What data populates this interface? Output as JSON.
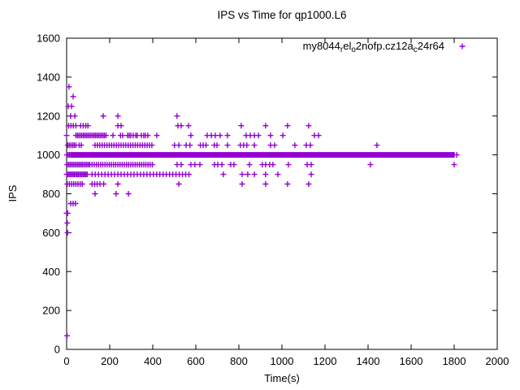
{
  "title": "IPS vs Time for qp1000.L6",
  "legend": {
    "parts": [
      {
        "text": "my8044"
      },
      {
        "text": "r",
        "sub": true
      },
      {
        "text": "el"
      },
      {
        "text": "o",
        "sub": true
      },
      {
        "text": "2nofp.cz12a"
      },
      {
        "text": "c",
        "sub": true
      },
      {
        "text": "24r64"
      }
    ],
    "marker": "plus-icon",
    "position": "top-right-inside"
  },
  "colors": {
    "series": "#9400D3",
    "axis": "#000000",
    "background": "#ffffff"
  },
  "chart_data": {
    "type": "scatter",
    "marker": "plus",
    "title": "IPS vs Time for qp1000.L6",
    "xlabel": "Time(s)",
    "ylabel": "IPS",
    "xlim": [
      0,
      2000
    ],
    "ylim": [
      0,
      1600
    ],
    "x_ticks": [
      0,
      200,
      400,
      600,
      800,
      1000,
      1200,
      1400,
      1600,
      1800,
      2000
    ],
    "y_ticks": [
      0,
      200,
      400,
      600,
      800,
      1000,
      1200,
      1400,
      1600
    ],
    "grid": false,
    "series_label_plain": "my8044_rel_o2nofp.cz12a_c24r64",
    "bands": [
      {
        "ips": 1350,
        "times": [
          11
        ]
      },
      {
        "ips": 1300,
        "times": [
          30
        ]
      },
      {
        "ips": 1250,
        "times": [
          8,
          23
        ]
      },
      {
        "ips": 1200,
        "times": [
          19,
          38,
          170,
          238,
          513
        ]
      },
      {
        "ips": 1150,
        "times": [
          9,
          20,
          31,
          43,
          65,
          77,
          89,
          99,
          238,
          253,
          517,
          532,
          566,
          811,
          924,
          1026,
          1124
        ]
      },
      {
        "ips": 1100,
        "times": [
          0,
          215,
          250,
          260,
          283,
          291,
          298,
          309,
          321,
          328,
          347,
          358,
          366,
          377,
          419,
          577,
          653,
          672,
          690,
          713,
          747,
          834,
          853,
          872,
          891,
          947,
          1004,
          1151,
          1170
        ],
        "runs": [
          {
            "from": 43,
            "to": 183,
            "step": 7
          }
        ]
      },
      {
        "ips": 1050,
        "times": [
          5,
          12,
          20,
          28,
          35,
          43,
          58,
          68,
          501,
          521,
          555,
          573,
          621,
          634,
          647,
          686,
          698,
          747,
          807,
          822,
          837,
          872,
          947,
          966,
          1060,
          1113,
          1132,
          1441
        ],
        "runs": [
          {
            "from": 132,
            "to": 396,
            "step": 11
          }
        ]
      },
      {
        "ips": 1000,
        "times": [
          2,
          8,
          14,
          1812
        ],
        "runs": [
          {
            "from": 20,
            "to": 1800,
            "step": 4
          }
        ]
      },
      {
        "ips": 950,
        "times": [
          513,
          532,
          577,
          596,
          619,
          687,
          702,
          721,
          762,
          777,
          849,
          909,
          924,
          943,
          958,
          1030,
          1117,
          1136,
          1411,
          1800
        ],
        "runs": [
          {
            "from": 3,
            "to": 101,
            "step": 7
          },
          {
            "from": 108,
            "to": 398,
            "step": 10
          }
        ]
      },
      {
        "ips": 900,
        "times": [
          728,
          815,
          841,
          872,
          924,
          981,
          1136
        ],
        "runs": [
          {
            "from": 0,
            "to": 96,
            "step": 6
          },
          {
            "from": 118,
            "to": 580,
            "step": 15
          }
        ]
      },
      {
        "ips": 850,
        "times": [
          118,
          130,
          142,
          155,
          172,
          238,
          521,
          815,
          924,
          1026,
          1124
        ],
        "runs": [
          {
            "from": 3,
            "to": 73,
            "step": 10
          }
        ]
      },
      {
        "ips": 800,
        "times": [
          132,
          230,
          287
        ]
      },
      {
        "ips": 750,
        "times": [
          19,
          30,
          41
        ]
      },
      {
        "ips": 700,
        "times": [
          0,
          5
        ]
      },
      {
        "ips": 650,
        "times": [
          3
        ]
      },
      {
        "ips": 600,
        "times": [
          4
        ]
      },
      {
        "ips": 70,
        "times": [
          2
        ]
      }
    ]
  }
}
